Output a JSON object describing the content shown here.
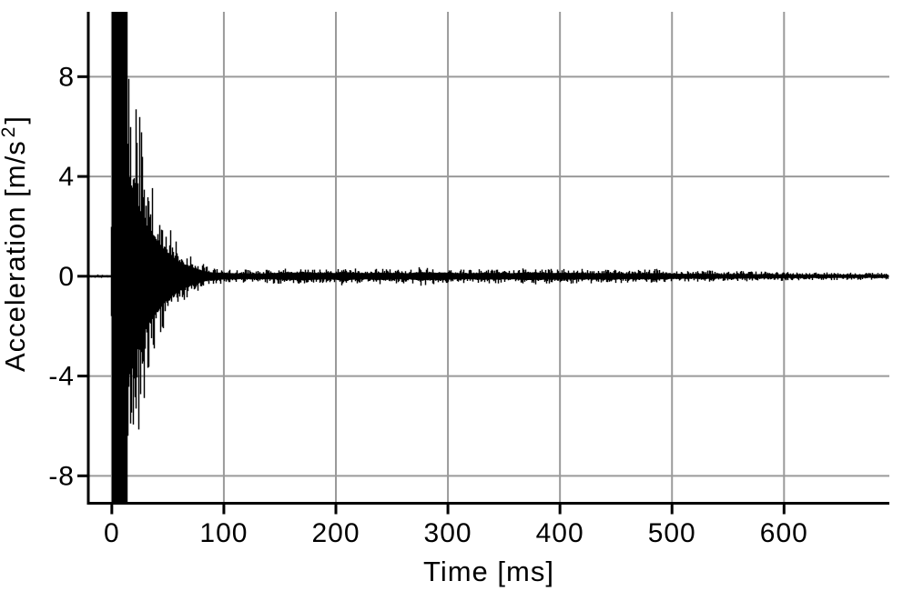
{
  "page": {
    "background_color": "#ffffff"
  },
  "chart_data": {
    "type": "line",
    "title": "",
    "xlabel": "Time [ms]",
    "ylabel": "Acceleration [m/s²]",
    "xlim": [
      -21,
      694
    ],
    "ylim": [
      -9.1,
      10.6
    ],
    "xticks": {
      "values": [
        0,
        100,
        200,
        300,
        400,
        500,
        600
      ],
      "labels": [
        "0",
        "100",
        "200",
        "300",
        "400",
        "500",
        "600"
      ]
    },
    "yticks": {
      "values": [
        -8,
        -4,
        0,
        4,
        8
      ],
      "labels": [
        "-8",
        "-4",
        "0",
        "4",
        "8"
      ]
    },
    "grid": true,
    "legend": "none",
    "colors": {
      "waveform": "#000000",
      "grid": "#9a9a9a",
      "axis": "#000000",
      "background": "#ffffff"
    },
    "series": [
      {
        "name": "acceleration",
        "representation": "envelope",
        "description": "Impact-excited vibration: high-frequency oscillation filling ±envelope, clipped at plot top/bottom during initial burst (0–13 ms), decaying to a low noise band of ±0.3 then ±0.15 m/s² by 690 ms",
        "pre_trigger_noise_amplitude": 0.07,
        "clipped_at_top": true,
        "envelope_t_ms": [
          -21,
          -1,
          0,
          13,
          15,
          18,
          21,
          25,
          30,
          35,
          40,
          45,
          50,
          55,
          60,
          65,
          70,
          75,
          80,
          85,
          90,
          100,
          115,
          130,
          145,
          160,
          172,
          185,
          198,
          207,
          215,
          228,
          240,
          252,
          265,
          275,
          285,
          295,
          305,
          318,
          330,
          345,
          358,
          370,
          382,
          392,
          405,
          418,
          430,
          445,
          460,
          475,
          488,
          500,
          515,
          530,
          545,
          560,
          575,
          590,
          605,
          620,
          635,
          650,
          665,
          680,
          694
        ],
        "envelope_amp_ms2": [
          0.07,
          0.07,
          12,
          12,
          9.6,
          8.3,
          7.4,
          6.3,
          4.9,
          4.2,
          3.4,
          2.7,
          2.2,
          1.75,
          1.4,
          1.1,
          0.9,
          0.7,
          0.55,
          0.42,
          0.36,
          0.3,
          0.27,
          0.26,
          0.3,
          0.33,
          0.38,
          0.3,
          0.3,
          0.42,
          0.32,
          0.3,
          0.34,
          0.3,
          0.28,
          0.4,
          0.32,
          0.35,
          0.3,
          0.28,
          0.32,
          0.3,
          0.28,
          0.36,
          0.34,
          0.3,
          0.32,
          0.3,
          0.28,
          0.3,
          0.26,
          0.28,
          0.3,
          0.24,
          0.22,
          0.24,
          0.2,
          0.22,
          0.19,
          0.2,
          0.17,
          0.16,
          0.17,
          0.15,
          0.16,
          0.14,
          0.13
        ]
      }
    ]
  }
}
